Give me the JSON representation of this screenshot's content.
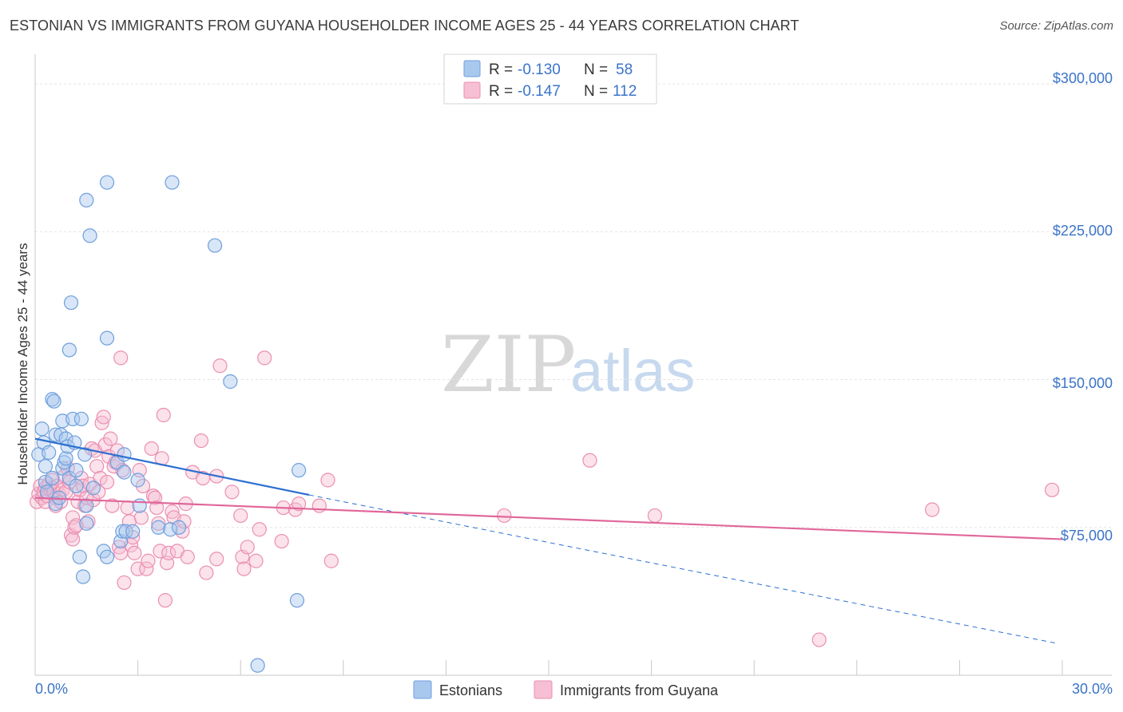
{
  "header": {
    "title": "ESTONIAN VS IMMIGRANTS FROM GUYANA HOUSEHOLDER INCOME AGES 25 - 44 YEARS CORRELATION CHART",
    "source": "Source: ZipAtlas.com"
  },
  "watermark": {
    "zip": "ZIP",
    "atlas": "atlas"
  },
  "colors": {
    "blue_fill": "#a9c8ee",
    "blue_stroke": "#6f9fdd",
    "blue_line": "#2d6fd0",
    "pink_fill": "#f6bfd3",
    "pink_stroke": "#eb8fb1",
    "pink_line": "#e0679a",
    "grid": "#e3e3e3",
    "tick_text": "#3b74c9"
  },
  "legend": {
    "rows": [
      {
        "r_label": "R = ",
        "r_value": "-0.130",
        "n_label": "N = ",
        "n_value": "58"
      },
      {
        "r_label": "R = ",
        "r_value": "-0.147",
        "n_label": "N = ",
        "n_value": "112"
      }
    ]
  },
  "bottom_legend": {
    "items": [
      {
        "label": "Estonians"
      },
      {
        "label": "Immigrants from Guyana"
      }
    ]
  },
  "chart_data": {
    "type": "scatter",
    "title": "ESTONIAN VS IMMIGRANTS FROM GUYANA HOUSEHOLDER INCOME AGES 25 - 44 YEARS CORRELATION CHART",
    "xlabel": "",
    "ylabel": "Householder Income Ages 25 - 44 years",
    "xlim": [
      0,
      30
    ],
    "ylim": [
      0,
      315000
    ],
    "x_tick_labels": [
      "0.0%",
      "30.0%"
    ],
    "y_ticks": [
      75000,
      150000,
      225000,
      300000
    ],
    "y_tick_labels": [
      "$75,000",
      "$150,000",
      "$225,000",
      "$300,000"
    ],
    "series": [
      {
        "name": "Estonians",
        "r": -0.13,
        "n": 58,
        "trend": {
          "x0": 0.0,
          "y0": 120000,
          "x1": 8.0,
          "y1": 91500,
          "dash_x1": 29.9,
          "dash_y1": 16000
        },
        "points": [
          [
            0.1,
            112000
          ],
          [
            0.2,
            125000
          ],
          [
            0.25,
            118000
          ],
          [
            0.3,
            106000
          ],
          [
            0.3,
            98000
          ],
          [
            0.35,
            93000
          ],
          [
            0.4,
            113000
          ],
          [
            0.5,
            100000
          ],
          [
            0.5,
            140000
          ],
          [
            0.55,
            139000
          ],
          [
            0.6,
            122000
          ],
          [
            0.6,
            87000
          ],
          [
            0.7,
            90000
          ],
          [
            0.75,
            122000
          ],
          [
            0.8,
            105000
          ],
          [
            0.8,
            129000
          ],
          [
            0.85,
            108000
          ],
          [
            0.9,
            110000
          ],
          [
            0.9,
            120000
          ],
          [
            0.95,
            116000
          ],
          [
            1.0,
            165000
          ],
          [
            1.0,
            100000
          ],
          [
            1.05,
            189000
          ],
          [
            1.1,
            130000
          ],
          [
            1.15,
            118000
          ],
          [
            1.2,
            104000
          ],
          [
            1.2,
            96000
          ],
          [
            1.3,
            60000
          ],
          [
            1.35,
            130000
          ],
          [
            1.4,
            50000
          ],
          [
            1.45,
            112000
          ],
          [
            1.5,
            241000
          ],
          [
            1.5,
            86000
          ],
          [
            1.5,
            77000
          ],
          [
            1.6,
            223000
          ],
          [
            1.7,
            95000
          ],
          [
            2.0,
            63000
          ],
          [
            2.1,
            250000
          ],
          [
            2.1,
            171000
          ],
          [
            2.1,
            60000
          ],
          [
            2.4,
            108000
          ],
          [
            2.5,
            68000
          ],
          [
            2.55,
            73000
          ],
          [
            2.6,
            103000
          ],
          [
            2.6,
            112000
          ],
          [
            2.65,
            73000
          ],
          [
            2.85,
            73000
          ],
          [
            3.0,
            99000
          ],
          [
            3.05,
            86000
          ],
          [
            4.0,
            250000
          ],
          [
            3.6,
            75000
          ],
          [
            3.95,
            74000
          ],
          [
            4.2,
            75000
          ],
          [
            5.25,
            218000
          ],
          [
            5.7,
            149000
          ],
          [
            6.5,
            5000
          ],
          [
            7.7,
            104000
          ],
          [
            7.65,
            38000
          ]
        ]
      },
      {
        "name": "Immigrants from Guyana",
        "r": -0.147,
        "n": 112,
        "trend": {
          "x0": 0.0,
          "y0": 90000,
          "x1": 30.0,
          "y1": 69000
        },
        "points": [
          [
            0.05,
            88000
          ],
          [
            0.1,
            92000
          ],
          [
            0.15,
            96000
          ],
          [
            0.2,
            90000
          ],
          [
            0.25,
            93000
          ],
          [
            0.3,
            95000
          ],
          [
            0.3,
            88000
          ],
          [
            0.35,
            91000
          ],
          [
            0.4,
            97000
          ],
          [
            0.45,
            94000
          ],
          [
            0.5,
            99000
          ],
          [
            0.5,
            95000
          ],
          [
            0.55,
            93000
          ],
          [
            0.6,
            90000
          ],
          [
            0.6,
            86000
          ],
          [
            0.65,
            96000
          ],
          [
            0.7,
            92000
          ],
          [
            0.75,
            88000
          ],
          [
            0.8,
            94000
          ],
          [
            0.85,
            101000
          ],
          [
            0.9,
            93000
          ],
          [
            0.95,
            105000
          ],
          [
            1.0,
            98000
          ],
          [
            1.05,
            71000
          ],
          [
            1.1,
            80000
          ],
          [
            1.1,
            69000
          ],
          [
            1.15,
            75000
          ],
          [
            1.2,
            76000
          ],
          [
            1.25,
            88000
          ],
          [
            1.3,
            94000
          ],
          [
            1.35,
            100000
          ],
          [
            1.4,
            96000
          ],
          [
            1.45,
            86000
          ],
          [
            1.5,
            90000
          ],
          [
            1.55,
            78000
          ],
          [
            1.6,
            97000
          ],
          [
            1.65,
            115000
          ],
          [
            1.7,
            89000
          ],
          [
            1.75,
            114000
          ],
          [
            1.8,
            106000
          ],
          [
            1.85,
            93000
          ],
          [
            1.9,
            100000
          ],
          [
            1.95,
            128000
          ],
          [
            2.0,
            131000
          ],
          [
            2.05,
            117000
          ],
          [
            2.1,
            98000
          ],
          [
            2.15,
            111000
          ],
          [
            2.2,
            120000
          ],
          [
            2.25,
            86000
          ],
          [
            2.3,
            106000
          ],
          [
            2.35,
            108000
          ],
          [
            2.4,
            114000
          ],
          [
            2.45,
            65000
          ],
          [
            2.5,
            62000
          ],
          [
            2.5,
            161000
          ],
          [
            2.55,
            104000
          ],
          [
            2.6,
            47000
          ],
          [
            2.7,
            85000
          ],
          [
            2.75,
            78000
          ],
          [
            2.8,
            66000
          ],
          [
            2.85,
            70000
          ],
          [
            2.9,
            62000
          ],
          [
            3.0,
            54000
          ],
          [
            3.05,
            104000
          ],
          [
            3.1,
            80000
          ],
          [
            3.15,
            96000
          ],
          [
            3.25,
            54000
          ],
          [
            3.3,
            58000
          ],
          [
            3.4,
            115000
          ],
          [
            3.45,
            91000
          ],
          [
            3.5,
            90000
          ],
          [
            3.55,
            85000
          ],
          [
            3.6,
            77000
          ],
          [
            3.65,
            63000
          ],
          [
            3.7,
            110000
          ],
          [
            3.75,
            132000
          ],
          [
            3.8,
            38000
          ],
          [
            3.85,
            57000
          ],
          [
            3.9,
            62000
          ],
          [
            4.0,
            83000
          ],
          [
            4.05,
            80000
          ],
          [
            4.15,
            63000
          ],
          [
            4.3,
            73000
          ],
          [
            4.35,
            78000
          ],
          [
            4.4,
            87000
          ],
          [
            4.45,
            60000
          ],
          [
            4.6,
            103000
          ],
          [
            4.85,
            119000
          ],
          [
            4.9,
            100000
          ],
          [
            5.0,
            52000
          ],
          [
            5.3,
            101000
          ],
          [
            5.3,
            59000
          ],
          [
            5.4,
            157000
          ],
          [
            5.75,
            93000
          ],
          [
            6.0,
            81000
          ],
          [
            6.05,
            60000
          ],
          [
            6.1,
            54000
          ],
          [
            6.2,
            65000
          ],
          [
            6.45,
            58000
          ],
          [
            6.55,
            74000
          ],
          [
            6.7,
            161000
          ],
          [
            7.2,
            68000
          ],
          [
            7.25,
            85000
          ],
          [
            7.6,
            84000
          ],
          [
            7.7,
            87000
          ],
          [
            8.3,
            86000
          ],
          [
            8.55,
            99000
          ],
          [
            8.65,
            58000
          ],
          [
            13.7,
            81000
          ],
          [
            16.2,
            109000
          ],
          [
            18.1,
            81000
          ],
          [
            22.9,
            18000
          ],
          [
            26.2,
            84000
          ],
          [
            29.7,
            94000
          ]
        ]
      }
    ]
  }
}
